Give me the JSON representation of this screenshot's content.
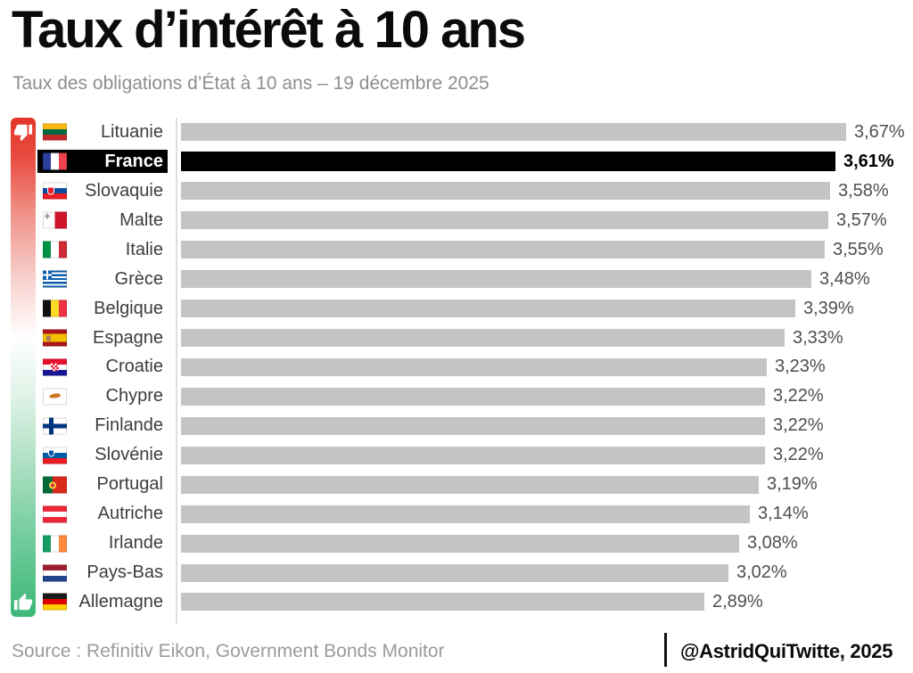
{
  "title": "Taux d’intérêt à 10 ans",
  "subtitle": "Taux des obligations d’État à 10 ans – 19 décembre 2025",
  "footer": {
    "source": "Source : Refinitiv Eikon, Government Bonds Monitor",
    "attribution": "@AstridQuiTwitte, 2025"
  },
  "legend": {
    "top_icon": "thumbs-down",
    "bottom_icon": "thumbs-up",
    "gradient_top_color": "#e43528",
    "gradient_bottom_color": "#3db878"
  },
  "chart_data": {
    "type": "bar",
    "orientation": "horizontal",
    "title": "Taux d’intérêt à 10 ans",
    "xlabel": "",
    "ylabel": "",
    "xlim": [
      0,
      3.67
    ],
    "grid": false,
    "bar_color": "#c4c4c4",
    "highlight_bar_color": "#000000",
    "highlight_index": 1,
    "highlight_category": "France",
    "categories": [
      "Lituanie",
      "France",
      "Slovaquie",
      "Malte",
      "Italie",
      "Grèce",
      "Belgique",
      "Espagne",
      "Croatie",
      "Chypre",
      "Finlande",
      "Slovénie",
      "Portugal",
      "Autriche",
      "Irlande",
      "Pays-Bas",
      "Allemagne"
    ],
    "values": [
      3.67,
      3.61,
      3.58,
      3.57,
      3.55,
      3.48,
      3.39,
      3.33,
      3.23,
      3.22,
      3.22,
      3.22,
      3.19,
      3.14,
      3.08,
      3.02,
      2.89
    ],
    "value_labels": [
      "3,67%",
      "3,61%",
      "3,58%",
      "3,57%",
      "3,55%",
      "3,48%",
      "3,39%",
      "3,33%",
      "3,23%",
      "3,22%",
      "3,22%",
      "3,22%",
      "3,19%",
      "3,14%",
      "3,08%",
      "3,02%",
      "2,89%"
    ],
    "flags": [
      "lt",
      "fr",
      "sk",
      "mt",
      "it",
      "gr",
      "be",
      "es",
      "hr",
      "cy",
      "fi",
      "si",
      "pt",
      "at",
      "ie",
      "nl",
      "de"
    ]
  }
}
